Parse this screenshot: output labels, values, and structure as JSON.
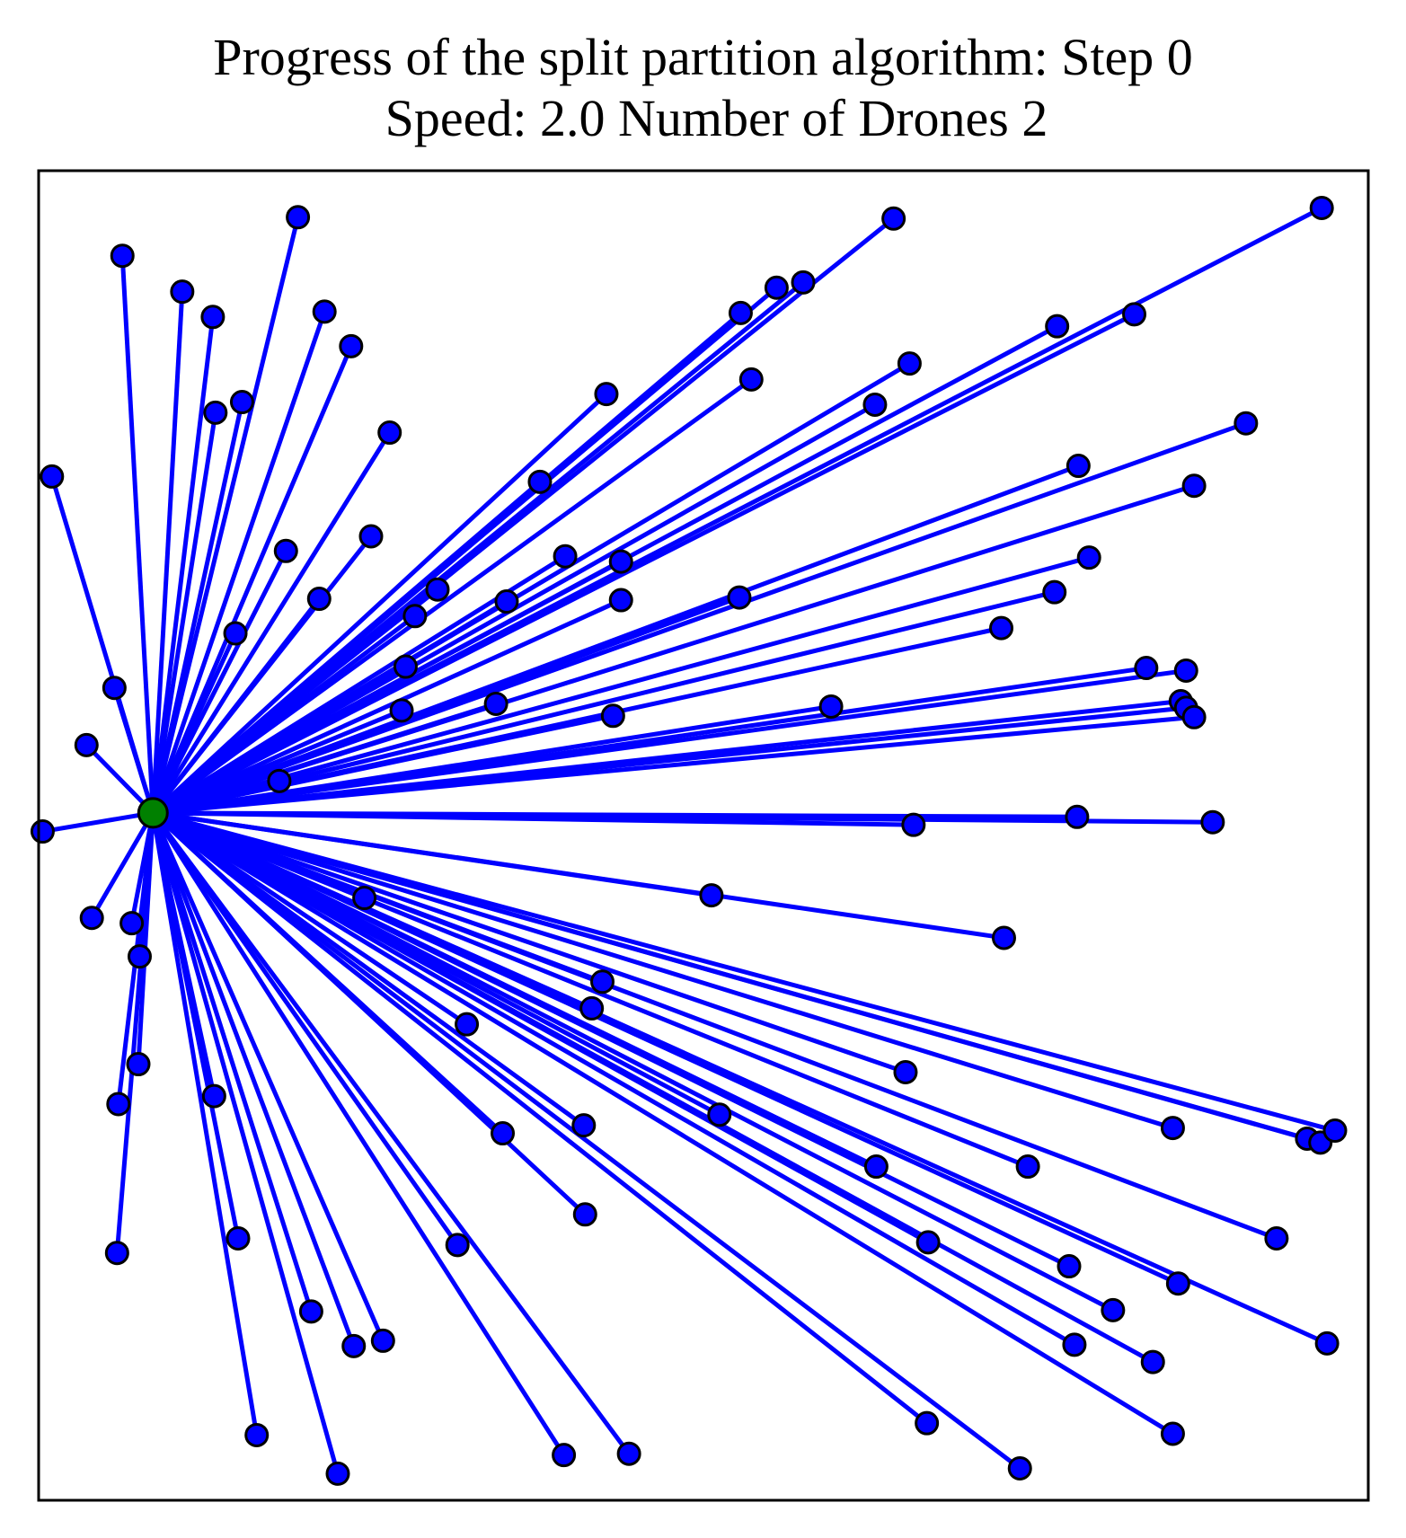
{
  "chart_data": {
    "type": "scatter",
    "title": "Progress of the split partition algorithm: Step 0",
    "subtitle": "Speed: 2.0 Number of Drones 2",
    "xlabel": "",
    "ylabel": "",
    "xlim": [
      0,
      100
    ],
    "ylim": [
      0,
      100
    ],
    "grid": false,
    "ticks_shown": false,
    "colors": {
      "edge": "#0000ff",
      "node": "#0000ff",
      "depot": "#008000",
      "marker_edge": "#000000"
    },
    "depot": {
      "x": 8.6,
      "y": 51.7
    },
    "points": [
      {
        "x": 19.5,
        "y": 96.5
      },
      {
        "x": 6.3,
        "y": 93.6
      },
      {
        "x": 10.8,
        "y": 90.9
      },
      {
        "x": 13.1,
        "y": 89.0
      },
      {
        "x": 21.5,
        "y": 89.4
      },
      {
        "x": 23.5,
        "y": 86.8
      },
      {
        "x": 13.3,
        "y": 81.8
      },
      {
        "x": 15.3,
        "y": 82.6
      },
      {
        "x": 26.4,
        "y": 80.3
      },
      {
        "x": 1.0,
        "y": 77.0
      },
      {
        "x": 18.6,
        "y": 71.4
      },
      {
        "x": 25.0,
        "y": 72.5
      },
      {
        "x": 21.1,
        "y": 67.8
      },
      {
        "x": 14.8,
        "y": 65.2
      },
      {
        "x": 28.3,
        "y": 66.5
      },
      {
        "x": 30.0,
        "y": 68.5
      },
      {
        "x": 5.7,
        "y": 61.1
      },
      {
        "x": 3.6,
        "y": 56.8
      },
      {
        "x": 18.1,
        "y": 54.1
      },
      {
        "x": 0.3,
        "y": 50.3
      },
      {
        "x": 27.6,
        "y": 62.7
      },
      {
        "x": 42.7,
        "y": 83.2
      },
      {
        "x": 37.7,
        "y": 76.6
      },
      {
        "x": 39.6,
        "y": 71.0
      },
      {
        "x": 35.2,
        "y": 67.6
      },
      {
        "x": 43.8,
        "y": 70.6
      },
      {
        "x": 43.8,
        "y": 67.7
      },
      {
        "x": 27.3,
        "y": 59.4
      },
      {
        "x": 34.4,
        "y": 59.9
      },
      {
        "x": 43.2,
        "y": 59.0
      },
      {
        "x": 52.8,
        "y": 89.3
      },
      {
        "x": 55.5,
        "y": 91.2
      },
      {
        "x": 57.5,
        "y": 91.6
      },
      {
        "x": 64.3,
        "y": 96.4
      },
      {
        "x": 53.6,
        "y": 84.3
      },
      {
        "x": 65.5,
        "y": 85.5
      },
      {
        "x": 62.9,
        "y": 82.4
      },
      {
        "x": 52.7,
        "y": 67.9
      },
      {
        "x": 59.6,
        "y": 59.7
      },
      {
        "x": 96.5,
        "y": 97.2
      },
      {
        "x": 76.6,
        "y": 88.3
      },
      {
        "x": 82.4,
        "y": 89.2
      },
      {
        "x": 78.2,
        "y": 77.8
      },
      {
        "x": 90.8,
        "y": 81.0
      },
      {
        "x": 86.9,
        "y": 76.3
      },
      {
        "x": 79.0,
        "y": 70.9
      },
      {
        "x": 76.4,
        "y": 68.3
      },
      {
        "x": 72.4,
        "y": 65.6
      },
      {
        "x": 83.3,
        "y": 62.6
      },
      {
        "x": 86.3,
        "y": 62.4
      },
      {
        "x": 85.9,
        "y": 60.1
      },
      {
        "x": 86.3,
        "y": 59.6
      },
      {
        "x": 86.9,
        "y": 58.9
      },
      {
        "x": 65.8,
        "y": 50.8
      },
      {
        "x": 78.1,
        "y": 51.4
      },
      {
        "x": 88.3,
        "y": 51.0
      },
      {
        "x": 24.5,
        "y": 45.3
      },
      {
        "x": 50.6,
        "y": 45.5
      },
      {
        "x": 72.6,
        "y": 42.3
      },
      {
        "x": 4.0,
        "y": 43.8
      },
      {
        "x": 7.0,
        "y": 43.4
      },
      {
        "x": 7.6,
        "y": 40.9
      },
      {
        "x": 42.4,
        "y": 39.0
      },
      {
        "x": 41.6,
        "y": 37.0
      },
      {
        "x": 32.2,
        "y": 35.8
      },
      {
        "x": 65.2,
        "y": 32.2
      },
      {
        "x": 7.5,
        "y": 32.8
      },
      {
        "x": 6.0,
        "y": 29.8
      },
      {
        "x": 13.2,
        "y": 30.4
      },
      {
        "x": 5.9,
        "y": 18.6
      },
      {
        "x": 15.0,
        "y": 19.7
      },
      {
        "x": 20.5,
        "y": 14.2
      },
      {
        "x": 23.7,
        "y": 11.6
      },
      {
        "x": 25.9,
        "y": 12.0
      },
      {
        "x": 16.4,
        "y": 4.9
      },
      {
        "x": 22.5,
        "y": 2.0
      },
      {
        "x": 34.9,
        "y": 27.6
      },
      {
        "x": 41.0,
        "y": 28.2
      },
      {
        "x": 31.5,
        "y": 19.2
      },
      {
        "x": 41.1,
        "y": 21.5
      },
      {
        "x": 51.2,
        "y": 29.0
      },
      {
        "x": 63.0,
        "y": 25.1
      },
      {
        "x": 74.4,
        "y": 25.1
      },
      {
        "x": 85.3,
        "y": 28.0
      },
      {
        "x": 95.4,
        "y": 27.2
      },
      {
        "x": 96.4,
        "y": 26.9
      },
      {
        "x": 97.5,
        "y": 27.8
      },
      {
        "x": 66.9,
        "y": 19.4
      },
      {
        "x": 77.5,
        "y": 17.6
      },
      {
        "x": 85.7,
        "y": 16.3
      },
      {
        "x": 93.1,
        "y": 19.7
      },
      {
        "x": 80.8,
        "y": 14.3
      },
      {
        "x": 77.9,
        "y": 11.7
      },
      {
        "x": 83.8,
        "y": 10.4
      },
      {
        "x": 96.9,
        "y": 11.8
      },
      {
        "x": 39.5,
        "y": 3.4
      },
      {
        "x": 44.4,
        "y": 3.5
      },
      {
        "x": 66.8,
        "y": 5.8
      },
      {
        "x": 85.3,
        "y": 5.0
      },
      {
        "x": 73.8,
        "y": 2.4
      }
    ]
  }
}
